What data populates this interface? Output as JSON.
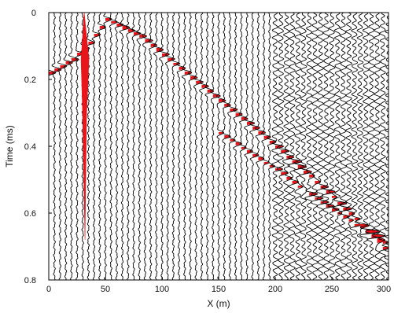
{
  "chart_data": {
    "type": "seismic-wiggle",
    "title": "",
    "xlabel": "X (m)",
    "ylabel": "Time (ms)",
    "xlim": [
      0,
      300
    ],
    "ylim": [
      0.8,
      0
    ],
    "x_ticks": [
      0,
      50,
      100,
      150,
      200,
      250,
      300
    ],
    "y_ticks": [
      0,
      0.2,
      0.4,
      0.6,
      0.8
    ],
    "trace_spacing_m": 5,
    "trace_count": 61,
    "trace_color": "#000000",
    "positive_fill_color": "#e8161b",
    "highlighted_trace": {
      "x": 32,
      "color": "#e8161b",
      "time_range": [
        0,
        0.68
      ]
    },
    "events": [
      {
        "name": "",
        "x": [
          0,
          20,
          35,
          50,
          80,
          120,
          160,
          200,
          240,
          270,
          300
        ],
        "t": [
          0.18,
          0.14,
          0.09,
          0.02,
          0.07,
          0.18,
          0.29,
          0.4,
          0.52,
          0.62,
          0.72
        ]
      },
      {
        "name": "",
        "x": [
          150,
          200,
          250,
          300
        ],
        "t": [
          0.36,
          0.47,
          0.59,
          0.7
        ]
      }
    ],
    "grid": false,
    "legend": "none"
  }
}
